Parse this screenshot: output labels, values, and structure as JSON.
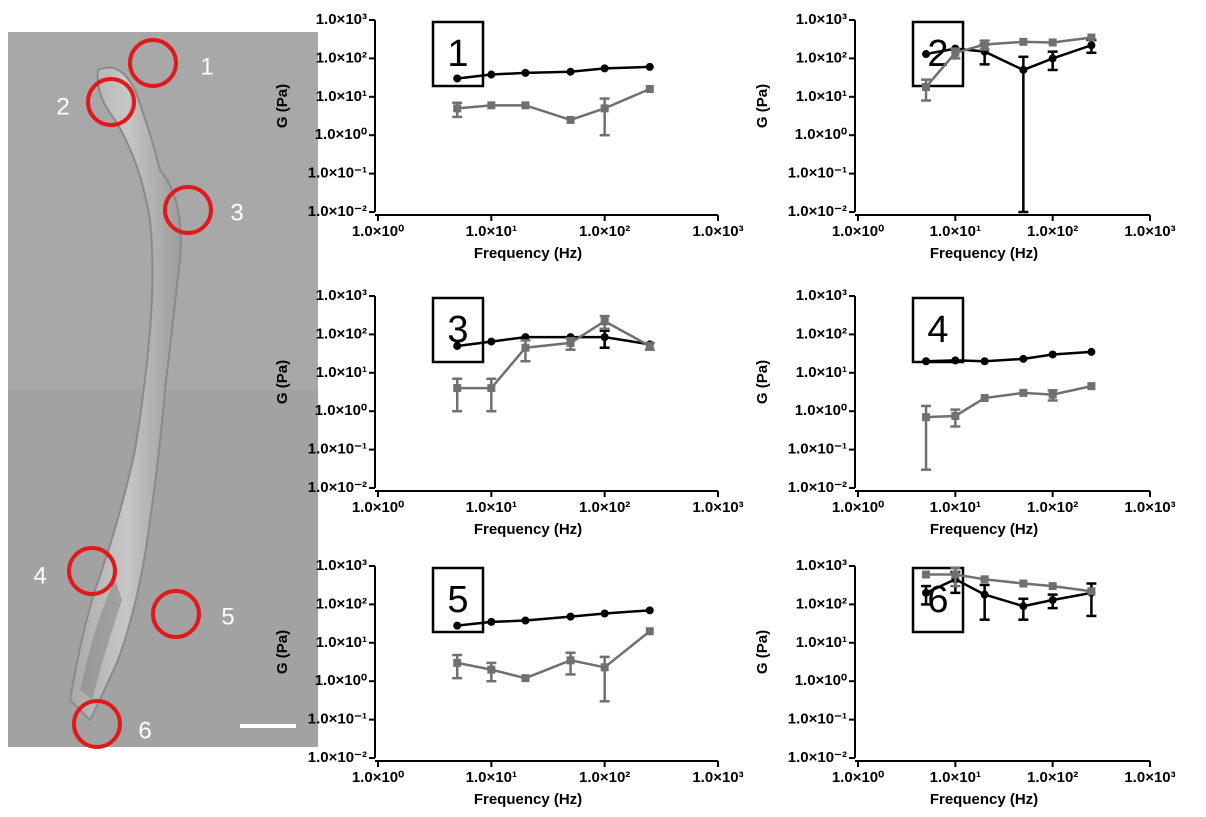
{
  "image": {
    "markers": [
      "1",
      "2",
      "3",
      "4",
      "5",
      "6"
    ]
  },
  "chart_data": [
    {
      "type": "line",
      "label": "1",
      "x_label": "Frequency (Hz)",
      "y_label": "G (Pa)",
      "xlog": true,
      "ylog": true,
      "x": [
        5,
        10,
        20,
        50,
        100,
        250
      ],
      "series": [
        {
          "color": "#000000",
          "marker": "circle",
          "values": [
            30,
            38,
            42,
            45,
            55,
            60
          ],
          "errors": [
            null,
            null,
            null,
            null,
            null,
            null
          ]
        },
        {
          "color": "#707070",
          "marker": "square",
          "values": [
            5,
            6,
            6,
            2.5,
            5,
            16
          ],
          "errors": [
            2,
            null,
            null,
            null,
            4,
            null
          ]
        }
      ],
      "xlim": [
        1,
        1000
      ],
      "ylim": [
        0.01,
        1000
      ],
      "xticks": [
        {
          "value": 1,
          "label": "1.0×10⁰"
        },
        {
          "value": 10,
          "label": "1.0×10¹"
        },
        {
          "value": 100,
          "label": "1.0×10²"
        },
        {
          "value": 1000,
          "label": "1.0×10³"
        }
      ],
      "yticks": [
        {
          "value": 0.01,
          "label": "1.0×10⁻²"
        },
        {
          "value": 0.1,
          "label": "1.0×10⁻¹"
        },
        {
          "value": 1,
          "label": "1.0×10⁰"
        },
        {
          "value": 10,
          "label": "1.0×10¹"
        },
        {
          "value": 100,
          "label": "1.0×10²"
        },
        {
          "value": 1000,
          "label": "1.0×10³"
        }
      ]
    },
    {
      "type": "line",
      "label": "2",
      "x_label": "Frequency (Hz)",
      "y_label": "G (Pa)",
      "xlog": true,
      "ylog": true,
      "x": [
        5,
        10,
        20,
        50,
        100,
        250
      ],
      "series": [
        {
          "color": "#000000",
          "marker": "circle",
          "values": [
            130,
            180,
            150,
            50,
            100,
            220
          ],
          "errors": [
            null,
            null,
            80,
            60,
            50,
            80
          ]
        },
        {
          "color": "#707070",
          "marker": "square",
          "values": [
            18,
            140,
            230,
            270,
            260,
            350
          ],
          "errors": [
            10,
            40,
            60,
            null,
            null,
            null
          ]
        }
      ],
      "xlim": [
        1,
        1000
      ],
      "ylim": [
        0.01,
        1000
      ],
      "xticks": [
        {
          "value": 1,
          "label": "1.0×10⁰"
        },
        {
          "value": 10,
          "label": "1.0×10¹"
        },
        {
          "value": 100,
          "label": "1.0×10²"
        },
        {
          "value": 1000,
          "label": "1.0×10³"
        }
      ],
      "yticks": [
        {
          "value": 0.01,
          "label": "1.0×10⁻²"
        },
        {
          "value": 0.1,
          "label": "1.0×10⁻¹"
        },
        {
          "value": 1,
          "label": "1.0×10⁰"
        },
        {
          "value": 10,
          "label": "1.0×10¹"
        },
        {
          "value": 100,
          "label": "1.0×10²"
        },
        {
          "value": 1000,
          "label": "1.0×10³"
        }
      ]
    },
    {
      "type": "line",
      "label": "3",
      "x_label": "Frequency (Hz)",
      "y_label": "G (Pa)",
      "xlog": true,
      "ylog": true,
      "x": [
        5,
        10,
        20,
        50,
        100,
        250
      ],
      "series": [
        {
          "color": "#000000",
          "marker": "circle",
          "values": [
            50,
            65,
            85,
            85,
            85,
            55
          ],
          "errors": [
            null,
            null,
            null,
            null,
            40,
            null
          ]
        },
        {
          "color": "#707070",
          "marker": "square",
          "values": [
            4,
            4,
            45,
            60,
            220,
            50
          ],
          "errors": [
            3,
            3,
            25,
            20,
            80,
            10
          ]
        }
      ],
      "xlim": [
        1,
        1000
      ],
      "ylim": [
        0.01,
        1000
      ],
      "xticks": [
        {
          "value": 1,
          "label": "1.0×10⁰"
        },
        {
          "value": 10,
          "label": "1.0×10¹"
        },
        {
          "value": 100,
          "label": "1.0×10²"
        },
        {
          "value": 1000,
          "label": "1.0×10³"
        }
      ],
      "yticks": [
        {
          "value": 0.01,
          "label": "1.0×10⁻²"
        },
        {
          "value": 0.1,
          "label": "1.0×10⁻¹"
        },
        {
          "value": 1,
          "label": "1.0×10⁰"
        },
        {
          "value": 10,
          "label": "1.0×10¹"
        },
        {
          "value": 100,
          "label": "1.0×10²"
        },
        {
          "value": 1000,
          "label": "1.0×10³"
        }
      ]
    },
    {
      "type": "line",
      "label": "4",
      "x_label": "Frequency (Hz)",
      "y_label": "G (Pa)",
      "xlog": true,
      "ylog": true,
      "x": [
        5,
        10,
        20,
        50,
        100,
        250
      ],
      "series": [
        {
          "color": "#000000",
          "marker": "circle",
          "values": [
            20,
            21,
            20,
            23,
            30,
            35
          ],
          "errors": [
            null,
            null,
            null,
            null,
            null,
            null
          ]
        },
        {
          "color": "#707070",
          "marker": "square",
          "values": [
            0.7,
            0.75,
            2.2,
            3,
            2.7,
            4.5
          ],
          "errors": [
            0.67,
            0.35,
            null,
            null,
            0.8,
            null
          ]
        }
      ],
      "xlim": [
        1,
        1000
      ],
      "ylim": [
        0.01,
        1000
      ],
      "xticks": [
        {
          "value": 1,
          "label": "1.0×10⁰"
        },
        {
          "value": 10,
          "label": "1.0×10¹"
        },
        {
          "value": 100,
          "label": "1.0×10²"
        },
        {
          "value": 1000,
          "label": "1.0×10³"
        }
      ],
      "yticks": [
        {
          "value": 0.01,
          "label": "1.0×10⁻²"
        },
        {
          "value": 0.1,
          "label": "1.0×10⁻¹"
        },
        {
          "value": 1,
          "label": "1.0×10⁰"
        },
        {
          "value": 10,
          "label": "1.0×10¹"
        },
        {
          "value": 100,
          "label": "1.0×10²"
        },
        {
          "value": 1000,
          "label": "1.0×10³"
        }
      ]
    },
    {
      "type": "line",
      "label": "5",
      "x_label": "Frequency (Hz)",
      "y_label": "G (Pa)",
      "xlog": true,
      "ylog": true,
      "x": [
        5,
        10,
        20,
        50,
        100,
        250
      ],
      "series": [
        {
          "color": "#000000",
          "marker": "circle",
          "values": [
            28,
            35,
            38,
            48,
            58,
            70
          ],
          "errors": [
            null,
            null,
            null,
            null,
            null,
            null
          ]
        },
        {
          "color": "#707070",
          "marker": "square",
          "values": [
            3,
            2,
            1.2,
            3.5,
            2.3,
            20
          ],
          "errors": [
            1.8,
            1,
            null,
            2,
            2,
            null
          ]
        }
      ],
      "xlim": [
        1,
        1000
      ],
      "ylim": [
        0.01,
        1000
      ],
      "xticks": [
        {
          "value": 1,
          "label": "1.0×10⁰"
        },
        {
          "value": 10,
          "label": "1.0×10¹"
        },
        {
          "value": 100,
          "label": "1.0×10²"
        },
        {
          "value": 1000,
          "label": "1.0×10³"
        }
      ],
      "yticks": [
        {
          "value": 0.01,
          "label": "1.0×10⁻²"
        },
        {
          "value": 0.1,
          "label": "1.0×10⁻¹"
        },
        {
          "value": 1,
          "label": "1.0×10⁰"
        },
        {
          "value": 10,
          "label": "1.0×10¹"
        },
        {
          "value": 100,
          "label": "1.0×10²"
        },
        {
          "value": 1000,
          "label": "1.0×10³"
        }
      ]
    },
    {
      "type": "line",
      "label": "6",
      "x_label": "Frequency (Hz)",
      "y_label": "G (Pa)",
      "xlog": true,
      "ylog": true,
      "x": [
        5,
        10,
        20,
        50,
        100,
        250
      ],
      "series": [
        {
          "color": "#000000",
          "marker": "circle",
          "values": [
            200,
            450,
            180,
            90,
            130,
            200
          ],
          "errors": [
            100,
            250,
            140,
            50,
            50,
            150
          ]
        },
        {
          "color": "#707070",
          "marker": "square",
          "values": [
            600,
            600,
            450,
            350,
            300,
            220
          ],
          "errors": [
            null,
            300,
            null,
            null,
            null,
            null
          ]
        }
      ],
      "xlim": [
        1,
        1000
      ],
      "ylim": [
        0.01,
        1000
      ],
      "xticks": [
        {
          "value": 1,
          "label": "1.0×10⁰"
        },
        {
          "value": 10,
          "label": "1.0×10¹"
        },
        {
          "value": 100,
          "label": "1.0×10²"
        },
        {
          "value": 1000,
          "label": "1.0×10³"
        }
      ],
      "yticks": [
        {
          "value": 0.01,
          "label": "1.0×10⁻²"
        },
        {
          "value": 0.1,
          "label": "1.0×10⁻¹"
        },
        {
          "value": 1,
          "label": "1.0×10⁰"
        },
        {
          "value": 10,
          "label": "1.0×10¹"
        },
        {
          "value": 100,
          "label": "1.0×10²"
        },
        {
          "value": 1000,
          "label": "1.0×10³"
        }
      ]
    }
  ]
}
